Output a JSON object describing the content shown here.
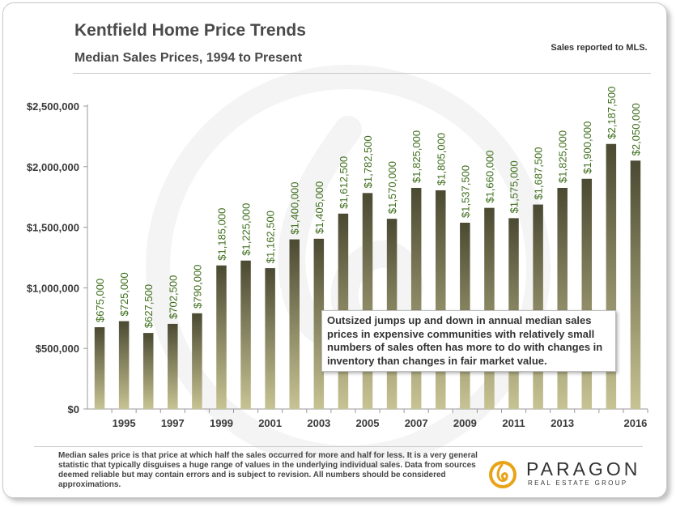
{
  "title": "Kentfield Home Price Trends",
  "subtitle": "Median Sales Prices, 1994 to Present",
  "note": "Sales reported to MLS.",
  "callout": "Outsized jumps up and down in annual median sales prices in expensive communities with relatively small numbers of sales often has more to do with changes in inventory than changes in fair market value.",
  "footer": "Median sales price is that price at which half the sales occurred for more and half for less. It is a very general statistic that typically disguises a huge range of values in the underlying individual sales. Data from sources deemed reliable but may contain errors and is subject to revision.  All numbers should be considered approximations.",
  "logo": {
    "name": "PARAGON",
    "tagline": "REAL ESTATE GROUP"
  },
  "colors": {
    "bar_top": "#4b4a32",
    "bar_bottom": "#c7c393",
    "label": "#3f6f1d",
    "axis_text": "#3a3a3a"
  },
  "chart_data": {
    "type": "bar",
    "title": "Kentfield Home Price Trends",
    "subtitle": "Median Sales Prices, 1994 to Present",
    "categories": [
      "1994",
      "1995",
      "1996",
      "1997",
      "1998",
      "1999",
      "2000",
      "2001",
      "2002",
      "2003",
      "2004",
      "2005",
      "2006",
      "2007",
      "2008",
      "2009",
      "2010",
      "2011",
      "2012",
      "2013",
      "2014",
      "2015",
      "2016"
    ],
    "x_tick_labels": [
      "",
      "1995",
      "",
      "1997",
      "",
      "1999",
      "",
      "2001",
      "",
      "2003",
      "",
      "2005",
      "",
      "2007",
      "",
      "2009",
      "",
      "2011",
      "",
      "2013",
      "",
      "",
      "2016"
    ],
    "values": [
      675000,
      725000,
      627500,
      702500,
      790000,
      1185000,
      1225000,
      1162500,
      1400000,
      1405000,
      1612500,
      1782500,
      1570000,
      1825000,
      1805000,
      1537500,
      1660000,
      1575000,
      1687500,
      1825000,
      1900000,
      2187500,
      2050000
    ],
    "data_labels": [
      "$675,000",
      "$725,000",
      "$627,500",
      "$702,500",
      "$790,000",
      "$1,185,000",
      "$1,225,000",
      "$1,162,500",
      "$1,400,000",
      "$1,405,000",
      "$1,612,500",
      "$1,782,500",
      "$1,570,000",
      "$1,825,000",
      "$1,805,000",
      "$1,537,500",
      "$1,660,000",
      "$1,575,000",
      "$1,687,500",
      "$1,825,000",
      "$1,900,000",
      "$2,187,500",
      "$2,050,000"
    ],
    "y_ticks": [
      0,
      500000,
      1000000,
      1500000,
      2000000,
      2500000
    ],
    "y_tick_labels": [
      "$0",
      "$500,000",
      "$1,000,000",
      "$1,500,000",
      "$2,000,000",
      "$2,500,000"
    ],
    "ylim": [
      0,
      2500000
    ],
    "xlabel": "",
    "ylabel": "",
    "grid": false,
    "legend": "none"
  }
}
